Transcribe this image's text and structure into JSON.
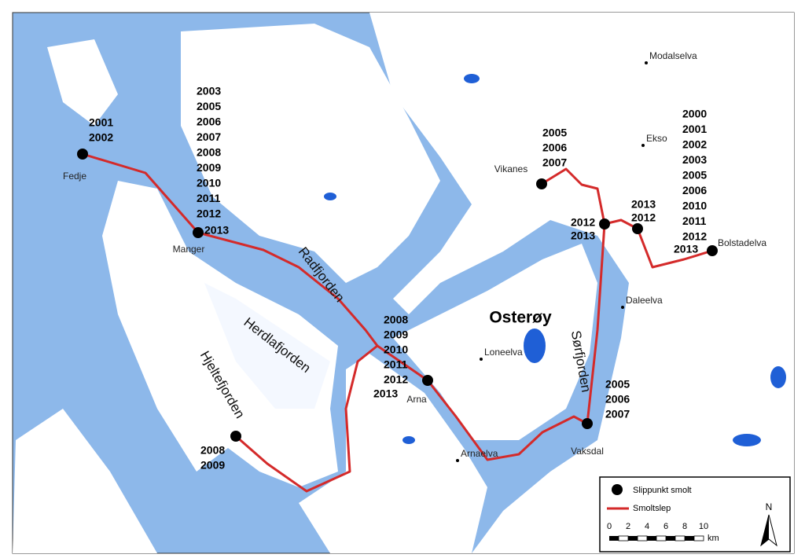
{
  "sites": [
    {
      "name": "Fedje",
      "years": [
        2001,
        2002
      ]
    },
    {
      "name": "Manger",
      "years": [
        2003,
        2005,
        2006,
        2007,
        2008,
        2009,
        2010,
        2011,
        2012,
        2013
      ]
    },
    {
      "name": "Vikanes",
      "years": [
        2005,
        2006,
        2007
      ]
    },
    {
      "years": [
        2012,
        2013
      ]
    },
    {
      "years": [
        2013,
        2012
      ]
    },
    {
      "name": "Bolstadelva",
      "years": [
        2000,
        2001,
        2002,
        2003,
        2005,
        2006,
        2010,
        2011,
        2012,
        2013
      ]
    },
    {
      "name": "Arna",
      "years": [
        2008,
        2009,
        2010,
        2011,
        2012,
        2013
      ]
    },
    {
      "name": "Vaksdal",
      "years": [
        2005,
        2006,
        2007
      ]
    },
    {
      "years": [
        2008,
        2009
      ]
    }
  ],
  "places": [
    "Modalselva",
    "Ekso",
    "Daleelva",
    "Loneelva",
    "Arnaelva"
  ],
  "fjords": [
    "Radfjorden",
    "Herdlafjorden",
    "Hjeltefjorden",
    "Sørfjorden"
  ],
  "island": "Osterøy",
  "legend": {
    "items": [
      "Slippunkt smolt",
      "Smoltslep"
    ]
  },
  "scale": {
    "ticks": [
      0,
      2,
      4,
      6,
      8,
      10
    ],
    "unit": "km"
  },
  "north": "N"
}
